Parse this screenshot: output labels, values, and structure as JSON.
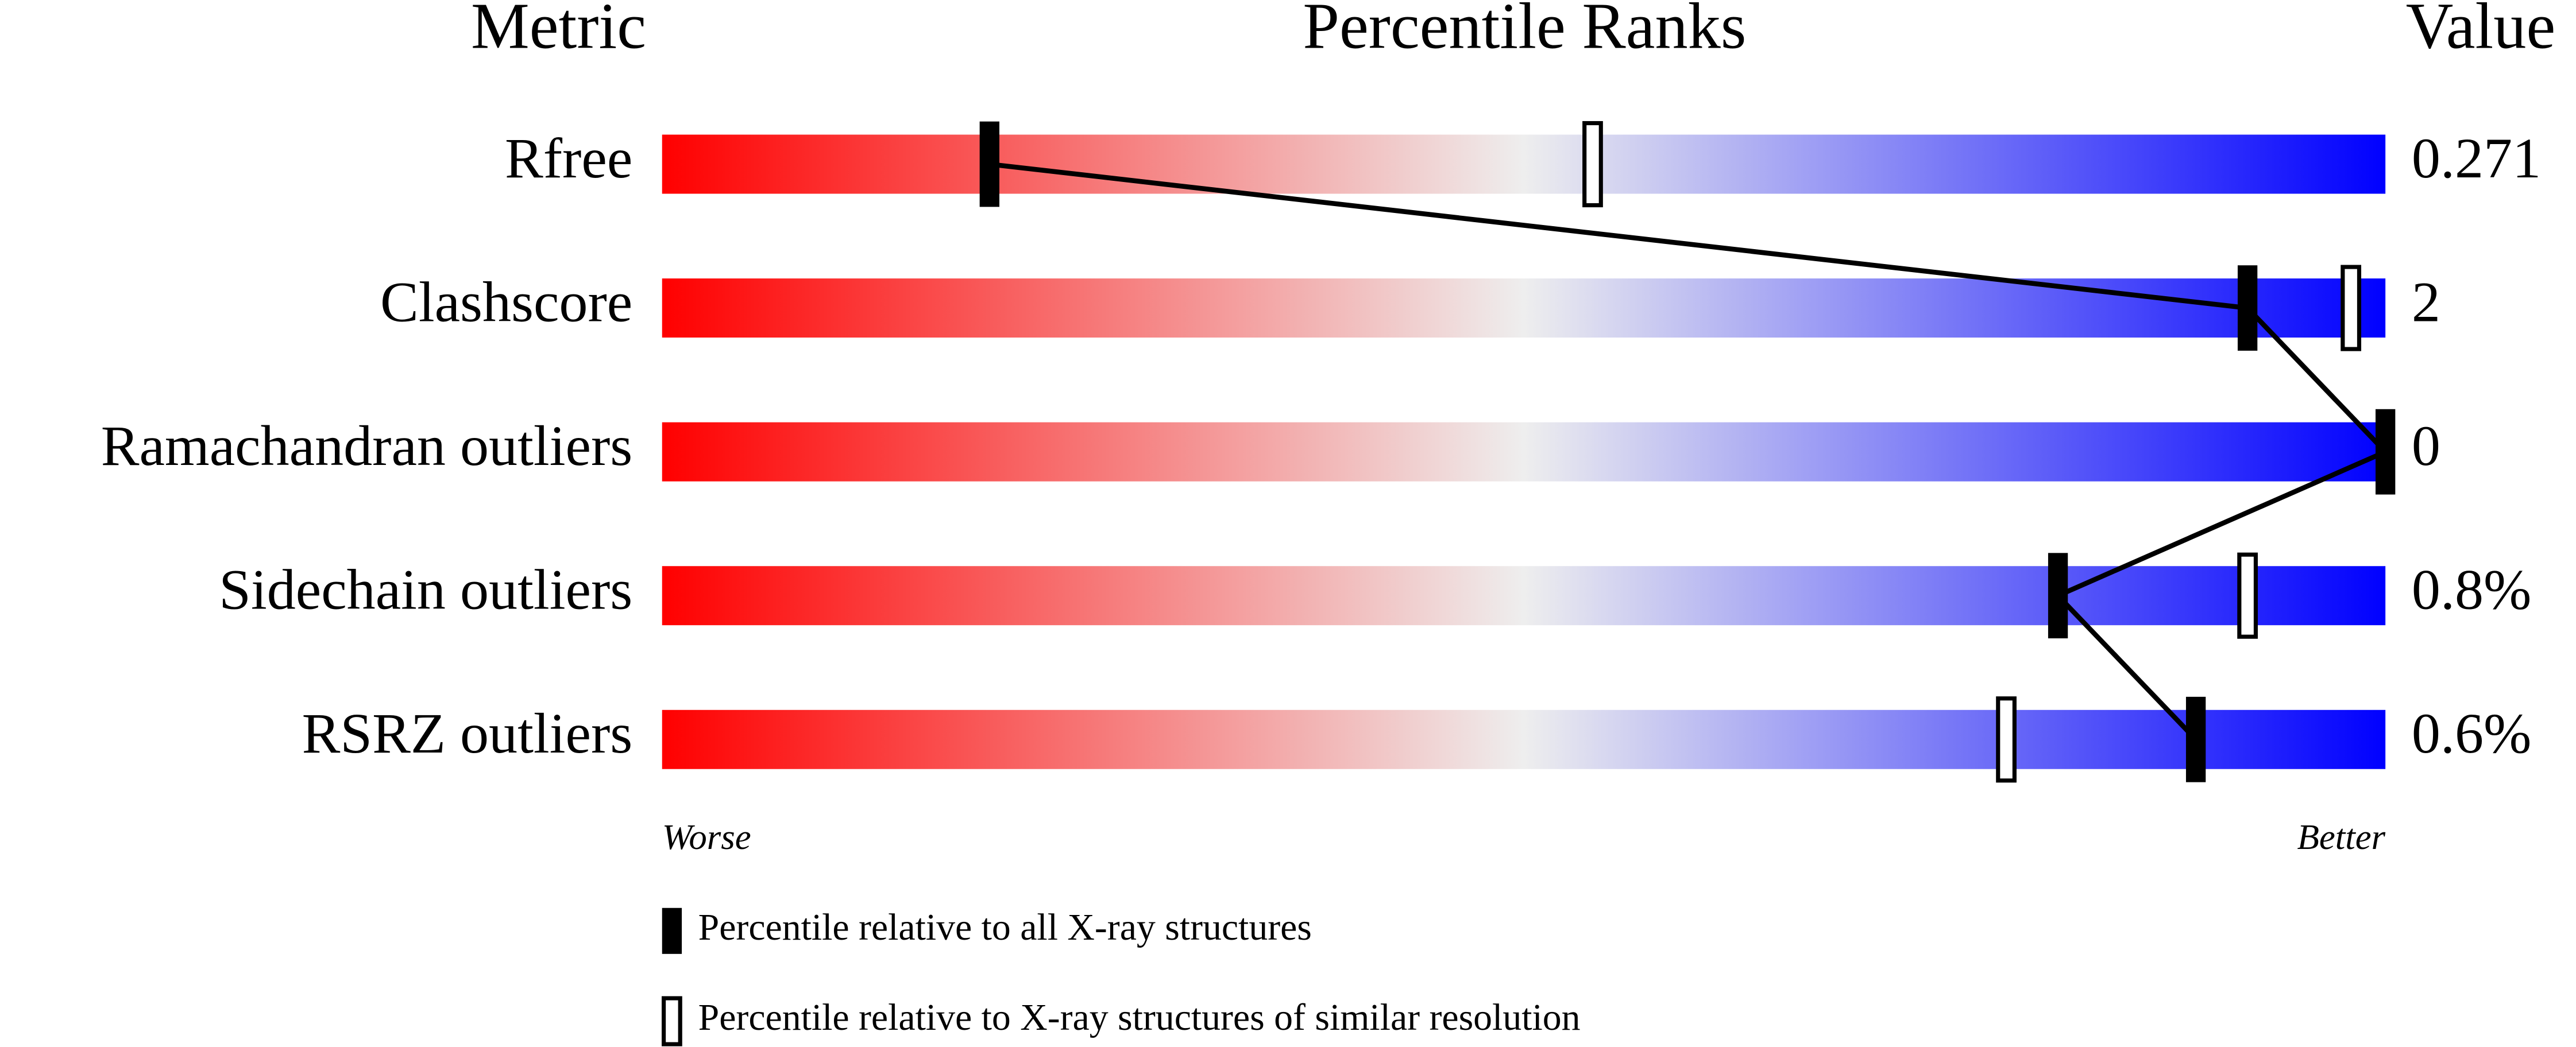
{
  "chart_data": {
    "type": "percentile_slider",
    "headers": [
      "Metric",
      "Percentile Ranks",
      "Value"
    ],
    "categories": [
      "Rfree",
      "Clashscore",
      "Ramachandran outliers",
      "Sidechain outliers",
      "RSRZ outliers"
    ],
    "metric_values": [
      "0.271",
      "2",
      "0",
      "0.8%",
      "0.6%"
    ],
    "xlim": [
      0,
      100
    ],
    "x_end_labels": [
      "Worse",
      "Better"
    ],
    "gradient": [
      "#ff0000",
      "#eeeeee",
      "#0000ff"
    ],
    "series": [
      {
        "name": "Percentile relative to all X-ray structures",
        "color": "#000000",
        "fill": "#000000",
        "connected": true,
        "values": [
          19,
          92,
          100,
          81,
          89
        ]
      },
      {
        "name": "Percentile relative to X-ray structures of similar resolution",
        "color": "#000000",
        "fill": "#ffffff",
        "connected": false,
        "values": [
          54,
          98,
          null,
          92,
          78
        ]
      }
    ]
  }
}
